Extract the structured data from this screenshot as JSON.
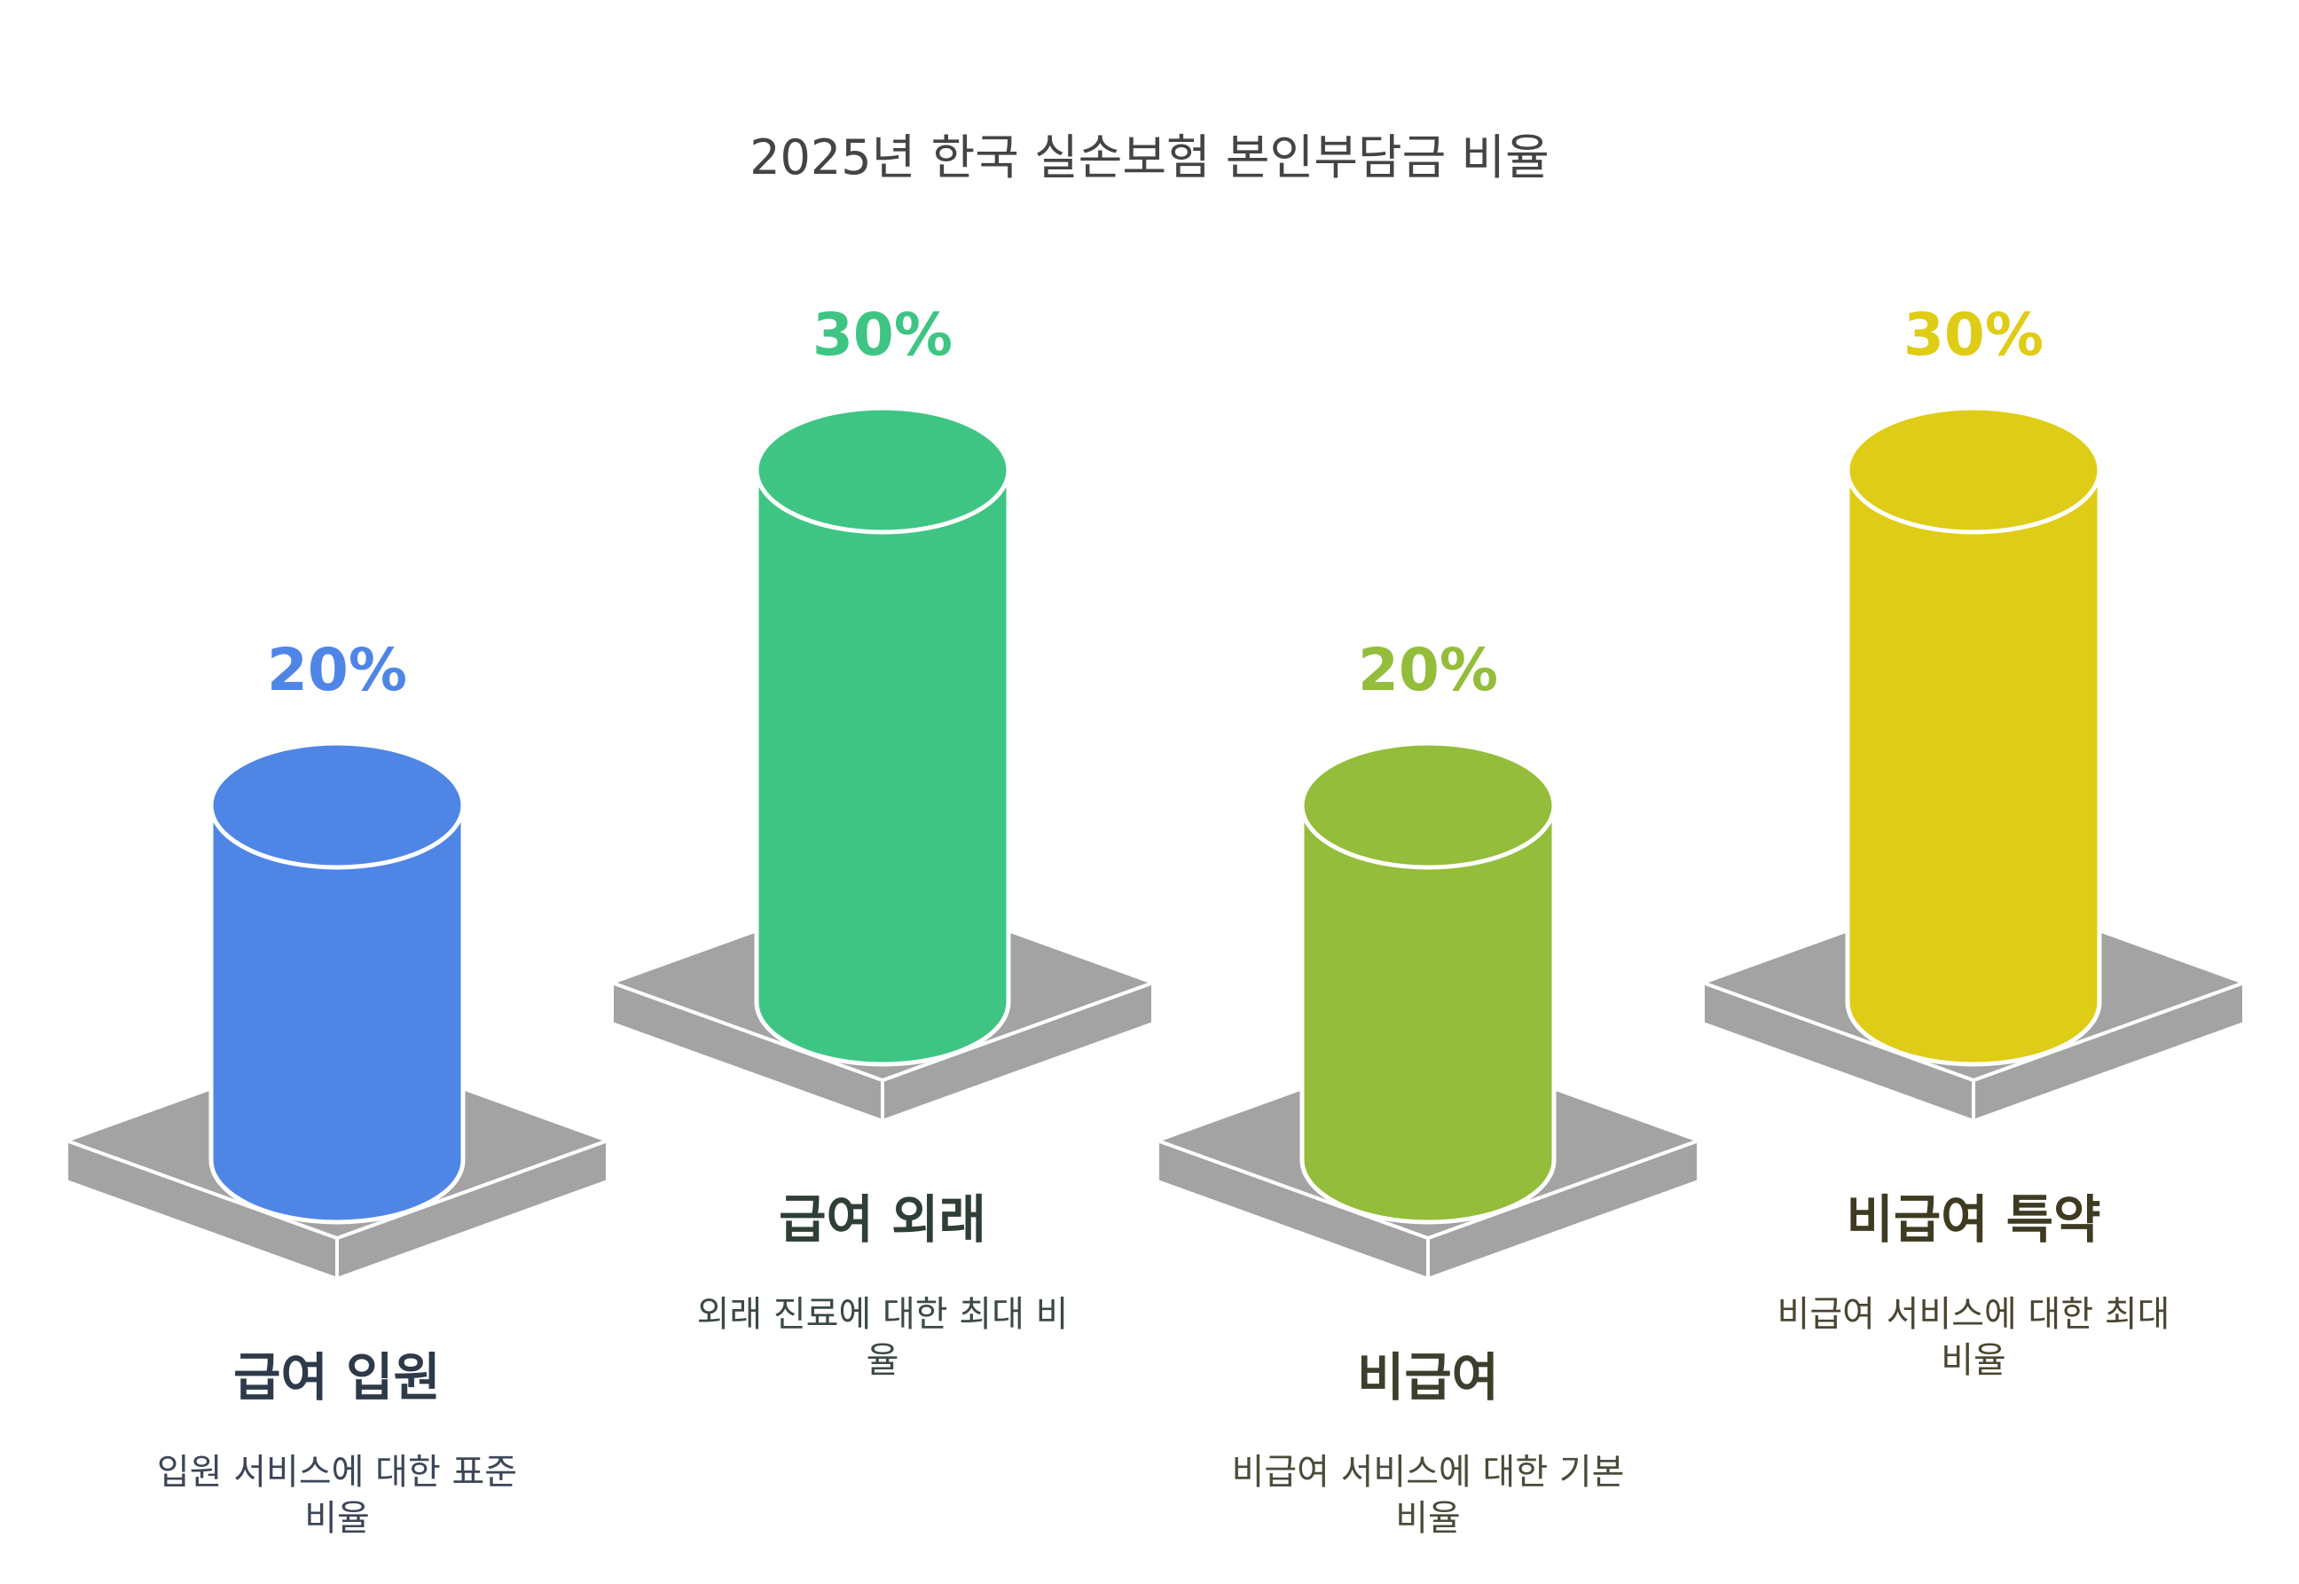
{
  "chart_data": {
    "type": "bar",
    "title": "2025년 한국 실손보험 본인부담금 비율",
    "categories": [
      "급여 입원",
      "급여 외래",
      "비급여",
      "비급여 특약"
    ],
    "values": [
      20,
      30,
      20,
      30
    ],
    "value_labels": [
      "20%",
      "30%",
      "20%",
      "30%"
    ],
    "descriptions": [
      [
        "입원 서비스에 대한 표준",
        "비율"
      ],
      [
        "외래 진료에 대한 최대 비",
        "율"
      ],
      [
        "비급여 서비스에 대한 기본",
        "비율"
      ],
      [
        "비급여 서비스에 대한 최대",
        "비율"
      ]
    ],
    "colors": [
      "#4f86e6",
      "#3ec584",
      "#93bd3a",
      "#dfcc16"
    ],
    "label_colors": [
      "#2e3a4a",
      "#2e3f36",
      "#3b3f2c",
      "#3f3b22"
    ],
    "desc_colors": [
      "#3c4658",
      "#3c4a42",
      "#4a4b3a",
      "#4a4630"
    ],
    "legend": "none",
    "grid": false
  }
}
